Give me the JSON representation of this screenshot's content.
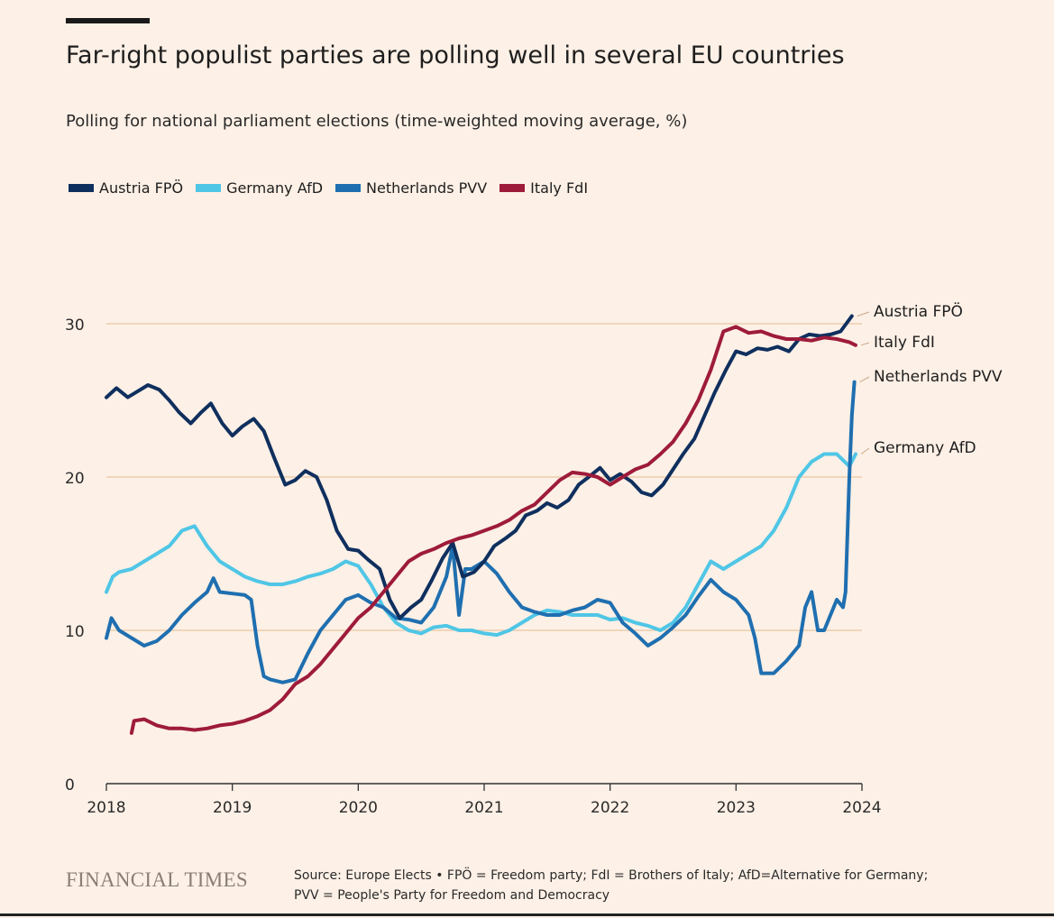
{
  "header": {
    "title": "Far-right populist parties are polling well in several EU countries",
    "subtitle": "Polling for national parliament elections (time-weighted moving average, %)"
  },
  "footer": {
    "logo": "FINANCIAL TIMES",
    "source_line1": "Source: Europe Elects • FPÖ = Freedom party; FdI = Brothers of Italy; AfD=Alternative for Germany;",
    "source_line2": "PVV = People's Party for Freedom and Democracy"
  },
  "chart_data": {
    "type": "line",
    "title": "Far-right populist parties are polling well in several EU countries",
    "subtitle": "Polling for national parliament elections (time-weighted moving average, %)",
    "xlabel": "",
    "ylabel": "",
    "xlim": [
      2018,
      2024
    ],
    "ylim": [
      0,
      30
    ],
    "x_ticks": [
      2018,
      2019,
      2020,
      2021,
      2022,
      2023,
      2024
    ],
    "y_ticks": [
      0,
      10,
      20,
      30
    ],
    "grid": "horizontal",
    "legend_position": "top-left",
    "series": [
      {
        "name": "Austria FPÖ",
        "label": "Austria FPÖ",
        "color": "#0f2f5e",
        "points": [
          [
            2018.0,
            25.2
          ],
          [
            2018.08,
            25.8
          ],
          [
            2018.17,
            25.2
          ],
          [
            2018.25,
            25.6
          ],
          [
            2018.33,
            26.0
          ],
          [
            2018.42,
            25.7
          ],
          [
            2018.5,
            25.0
          ],
          [
            2018.58,
            24.2
          ],
          [
            2018.67,
            23.5
          ],
          [
            2018.75,
            24.2
          ],
          [
            2018.83,
            24.8
          ],
          [
            2018.92,
            23.5
          ],
          [
            2019.0,
            22.7
          ],
          [
            2019.08,
            23.3
          ],
          [
            2019.17,
            23.8
          ],
          [
            2019.25,
            23.0
          ],
          [
            2019.33,
            21.3
          ],
          [
            2019.42,
            19.5
          ],
          [
            2019.5,
            19.8
          ],
          [
            2019.58,
            20.4
          ],
          [
            2019.67,
            20.0
          ],
          [
            2019.75,
            18.5
          ],
          [
            2019.83,
            16.5
          ],
          [
            2019.92,
            15.3
          ],
          [
            2020.0,
            15.2
          ],
          [
            2020.08,
            14.6
          ],
          [
            2020.17,
            14.0
          ],
          [
            2020.25,
            12.0
          ],
          [
            2020.33,
            10.8
          ],
          [
            2020.42,
            11.5
          ],
          [
            2020.5,
            12.0
          ],
          [
            2020.58,
            13.2
          ],
          [
            2020.67,
            14.7
          ],
          [
            2020.75,
            15.7
          ],
          [
            2020.83,
            13.5
          ],
          [
            2020.92,
            13.8
          ],
          [
            2021.0,
            14.5
          ],
          [
            2021.08,
            15.5
          ],
          [
            2021.17,
            16.0
          ],
          [
            2021.25,
            16.5
          ],
          [
            2021.33,
            17.5
          ],
          [
            2021.42,
            17.8
          ],
          [
            2021.5,
            18.3
          ],
          [
            2021.58,
            18.0
          ],
          [
            2021.67,
            18.5
          ],
          [
            2021.75,
            19.5
          ],
          [
            2021.83,
            20.0
          ],
          [
            2021.92,
            20.6
          ],
          [
            2022.0,
            19.8
          ],
          [
            2022.08,
            20.2
          ],
          [
            2022.17,
            19.7
          ],
          [
            2022.25,
            19.0
          ],
          [
            2022.33,
            18.8
          ],
          [
            2022.42,
            19.5
          ],
          [
            2022.5,
            20.5
          ],
          [
            2022.58,
            21.5
          ],
          [
            2022.67,
            22.5
          ],
          [
            2022.75,
            24.0
          ],
          [
            2022.83,
            25.5
          ],
          [
            2022.92,
            27.0
          ],
          [
            2023.0,
            28.2
          ],
          [
            2023.08,
            28.0
          ],
          [
            2023.17,
            28.4
          ],
          [
            2023.25,
            28.3
          ],
          [
            2023.33,
            28.5
          ],
          [
            2023.42,
            28.2
          ],
          [
            2023.5,
            29.0
          ],
          [
            2023.58,
            29.3
          ],
          [
            2023.67,
            29.2
          ],
          [
            2023.75,
            29.3
          ],
          [
            2023.83,
            29.5
          ],
          [
            2023.92,
            30.5
          ]
        ]
      },
      {
        "name": "Italy FdI",
        "label": "Italy FdI",
        "color": "#9e1b3a",
        "points": [
          [
            2018.2,
            3.3
          ],
          [
            2018.22,
            4.1
          ],
          [
            2018.3,
            4.2
          ],
          [
            2018.4,
            3.8
          ],
          [
            2018.5,
            3.6
          ],
          [
            2018.6,
            3.6
          ],
          [
            2018.7,
            3.5
          ],
          [
            2018.8,
            3.6
          ],
          [
            2018.9,
            3.8
          ],
          [
            2019.0,
            3.9
          ],
          [
            2019.1,
            4.1
          ],
          [
            2019.2,
            4.4
          ],
          [
            2019.3,
            4.8
          ],
          [
            2019.4,
            5.5
          ],
          [
            2019.5,
            6.5
          ],
          [
            2019.6,
            7.0
          ],
          [
            2019.7,
            7.8
          ],
          [
            2019.8,
            8.8
          ],
          [
            2019.9,
            9.8
          ],
          [
            2020.0,
            10.8
          ],
          [
            2020.1,
            11.5
          ],
          [
            2020.2,
            12.5
          ],
          [
            2020.3,
            13.5
          ],
          [
            2020.4,
            14.5
          ],
          [
            2020.5,
            15.0
          ],
          [
            2020.6,
            15.3
          ],
          [
            2020.7,
            15.7
          ],
          [
            2020.8,
            16.0
          ],
          [
            2020.9,
            16.2
          ],
          [
            2021.0,
            16.5
          ],
          [
            2021.1,
            16.8
          ],
          [
            2021.2,
            17.2
          ],
          [
            2021.3,
            17.8
          ],
          [
            2021.4,
            18.2
          ],
          [
            2021.5,
            19.0
          ],
          [
            2021.6,
            19.8
          ],
          [
            2021.7,
            20.3
          ],
          [
            2021.8,
            20.2
          ],
          [
            2021.9,
            20.0
          ],
          [
            2022.0,
            19.5
          ],
          [
            2022.1,
            20.0
          ],
          [
            2022.2,
            20.5
          ],
          [
            2022.3,
            20.8
          ],
          [
            2022.4,
            21.5
          ],
          [
            2022.5,
            22.3
          ],
          [
            2022.6,
            23.5
          ],
          [
            2022.7,
            25.0
          ],
          [
            2022.8,
            27.0
          ],
          [
            2022.9,
            29.5
          ],
          [
            2023.0,
            29.8
          ],
          [
            2023.1,
            29.4
          ],
          [
            2023.2,
            29.5
          ],
          [
            2023.3,
            29.2
          ],
          [
            2023.4,
            29.0
          ],
          [
            2023.5,
            29.0
          ],
          [
            2023.6,
            28.9
          ],
          [
            2023.7,
            29.1
          ],
          [
            2023.8,
            29.0
          ],
          [
            2023.9,
            28.8
          ],
          [
            2023.95,
            28.6
          ]
        ]
      },
      {
        "name": "Netherlands PVV",
        "label": "Netherlands PVV",
        "color": "#1f6fb0",
        "points": [
          [
            2018.0,
            9.5
          ],
          [
            2018.04,
            10.8
          ],
          [
            2018.1,
            10.0
          ],
          [
            2018.2,
            9.5
          ],
          [
            2018.3,
            9.0
          ],
          [
            2018.4,
            9.3
          ],
          [
            2018.5,
            10.0
          ],
          [
            2018.6,
            11.0
          ],
          [
            2018.7,
            11.8
          ],
          [
            2018.8,
            12.5
          ],
          [
            2018.85,
            13.4
          ],
          [
            2018.9,
            12.5
          ],
          [
            2019.0,
            12.4
          ],
          [
            2019.1,
            12.3
          ],
          [
            2019.15,
            12.0
          ],
          [
            2019.2,
            9.0
          ],
          [
            2019.25,
            7.0
          ],
          [
            2019.3,
            6.8
          ],
          [
            2019.4,
            6.6
          ],
          [
            2019.5,
            6.8
          ],
          [
            2019.6,
            8.5
          ],
          [
            2019.7,
            10.0
          ],
          [
            2019.8,
            11.0
          ],
          [
            2019.9,
            12.0
          ],
          [
            2020.0,
            12.3
          ],
          [
            2020.1,
            11.8
          ],
          [
            2020.2,
            11.5
          ],
          [
            2020.3,
            10.8
          ],
          [
            2020.4,
            10.7
          ],
          [
            2020.5,
            10.5
          ],
          [
            2020.6,
            11.5
          ],
          [
            2020.7,
            13.5
          ],
          [
            2020.75,
            15.5
          ],
          [
            2020.8,
            11.0
          ],
          [
            2020.85,
            14.0
          ],
          [
            2020.9,
            14.0
          ],
          [
            2021.0,
            14.5
          ],
          [
            2021.1,
            13.7
          ],
          [
            2021.2,
            12.5
          ],
          [
            2021.3,
            11.5
          ],
          [
            2021.4,
            11.2
          ],
          [
            2021.5,
            11.0
          ],
          [
            2021.6,
            11.0
          ],
          [
            2021.7,
            11.3
          ],
          [
            2021.8,
            11.5
          ],
          [
            2021.9,
            12.0
          ],
          [
            2022.0,
            11.8
          ],
          [
            2022.1,
            10.5
          ],
          [
            2022.2,
            9.8
          ],
          [
            2022.3,
            9.0
          ],
          [
            2022.4,
            9.5
          ],
          [
            2022.5,
            10.2
          ],
          [
            2022.6,
            11.0
          ],
          [
            2022.7,
            12.2
          ],
          [
            2022.8,
            13.3
          ],
          [
            2022.9,
            12.5
          ],
          [
            2023.0,
            12.0
          ],
          [
            2023.1,
            11.0
          ],
          [
            2023.15,
            9.5
          ],
          [
            2023.2,
            7.2
          ],
          [
            2023.3,
            7.2
          ],
          [
            2023.4,
            8.0
          ],
          [
            2023.5,
            9.0
          ],
          [
            2023.55,
            11.5
          ],
          [
            2023.6,
            12.5
          ],
          [
            2023.65,
            10.0
          ],
          [
            2023.7,
            10.0
          ],
          [
            2023.75,
            11.0
          ],
          [
            2023.8,
            12.0
          ],
          [
            2023.85,
            11.5
          ],
          [
            2023.87,
            12.5
          ],
          [
            2023.88,
            15.0
          ],
          [
            2023.9,
            20.0
          ],
          [
            2023.92,
            24.0
          ],
          [
            2023.94,
            26.2
          ]
        ]
      },
      {
        "name": "Germany AfD",
        "label": "Germany AfD",
        "color": "#4fc6e6",
        "points": [
          [
            2018.0,
            12.5
          ],
          [
            2018.05,
            13.5
          ],
          [
            2018.1,
            13.8
          ],
          [
            2018.2,
            14.0
          ],
          [
            2018.3,
            14.5
          ],
          [
            2018.4,
            15.0
          ],
          [
            2018.5,
            15.5
          ],
          [
            2018.6,
            16.5
          ],
          [
            2018.7,
            16.8
          ],
          [
            2018.8,
            15.5
          ],
          [
            2018.9,
            14.5
          ],
          [
            2019.0,
            14.0
          ],
          [
            2019.1,
            13.5
          ],
          [
            2019.2,
            13.2
          ],
          [
            2019.3,
            13.0
          ],
          [
            2019.4,
            13.0
          ],
          [
            2019.5,
            13.2
          ],
          [
            2019.6,
            13.5
          ],
          [
            2019.7,
            13.7
          ],
          [
            2019.8,
            14.0
          ],
          [
            2019.9,
            14.5
          ],
          [
            2020.0,
            14.2
          ],
          [
            2020.1,
            13.0
          ],
          [
            2020.2,
            11.5
          ],
          [
            2020.3,
            10.5
          ],
          [
            2020.4,
            10.0
          ],
          [
            2020.5,
            9.8
          ],
          [
            2020.6,
            10.2
          ],
          [
            2020.7,
            10.3
          ],
          [
            2020.8,
            10.0
          ],
          [
            2020.9,
            10.0
          ],
          [
            2021.0,
            9.8
          ],
          [
            2021.1,
            9.7
          ],
          [
            2021.2,
            10.0
          ],
          [
            2021.3,
            10.5
          ],
          [
            2021.4,
            11.0
          ],
          [
            2021.5,
            11.3
          ],
          [
            2021.6,
            11.2
          ],
          [
            2021.7,
            11.0
          ],
          [
            2021.8,
            11.0
          ],
          [
            2021.9,
            11.0
          ],
          [
            2022.0,
            10.7
          ],
          [
            2022.1,
            10.8
          ],
          [
            2022.2,
            10.5
          ],
          [
            2022.3,
            10.3
          ],
          [
            2022.4,
            10.0
          ],
          [
            2022.5,
            10.5
          ],
          [
            2022.6,
            11.5
          ],
          [
            2022.7,
            13.0
          ],
          [
            2022.8,
            14.5
          ],
          [
            2022.9,
            14.0
          ],
          [
            2023.0,
            14.5
          ],
          [
            2023.1,
            15.0
          ],
          [
            2023.2,
            15.5
          ],
          [
            2023.3,
            16.5
          ],
          [
            2023.4,
            18.0
          ],
          [
            2023.5,
            20.0
          ],
          [
            2023.6,
            21.0
          ],
          [
            2023.7,
            21.5
          ],
          [
            2023.8,
            21.5
          ],
          [
            2023.9,
            20.7
          ],
          [
            2023.95,
            21.5
          ]
        ]
      }
    ]
  }
}
